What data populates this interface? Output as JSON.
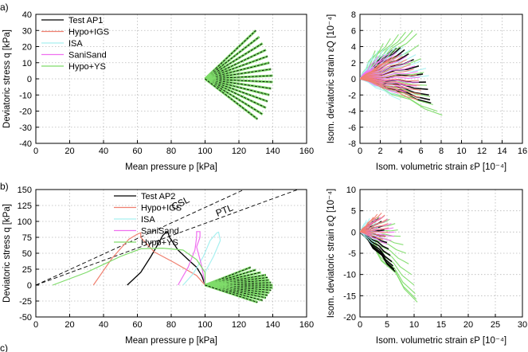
{
  "colors": {
    "test": "#000000",
    "hypo_igs": "#f08070",
    "isa": "#a8f0f0",
    "sanisand": "#f070f0",
    "hypo_ys": "#7fdc6a",
    "grid": "#b8b8b8"
  },
  "panels": [
    {
      "letter": "a)"
    },
    {
      "letter": "b)"
    },
    {
      "letter": "c)"
    }
  ],
  "chart_data": [
    {
      "id": "a-left",
      "type": "line",
      "xlabel": "Mean pressure p [kPa]",
      "ylabel": "Deviatoric stress q [kPa]",
      "xlim": [
        0,
        160
      ],
      "ylim": [
        -40,
        40
      ],
      "xticks": [
        "0",
        "20",
        "40",
        "60",
        "80",
        "100",
        "120",
        "140",
        "160"
      ],
      "yticks": [
        "-40",
        "-30",
        "-20",
        "-10",
        "0",
        "10",
        "20",
        "30",
        "40"
      ],
      "legend": [
        "Test AP1",
        "Hypo+IGS",
        "ISA",
        "SaniSand",
        "Hypo+YS"
      ],
      "legend_position": "top-left",
      "fan": {
        "origin": [
          100,
          0
        ],
        "ends": [
          [
            130,
            30
          ],
          [
            132,
            26
          ],
          [
            134,
            22
          ],
          [
            136,
            18
          ],
          [
            137,
            14
          ],
          [
            138,
            10
          ],
          [
            139,
            6
          ],
          [
            140,
            2
          ],
          [
            140,
            -2
          ],
          [
            139,
            -6
          ],
          [
            138,
            -10
          ],
          [
            137,
            -14
          ],
          [
            136,
            -18
          ],
          [
            134,
            -22
          ],
          [
            131,
            -25
          ]
        ]
      }
    },
    {
      "id": "a-right",
      "type": "line",
      "xlabel": "Isom. volumetric strain  εP [10⁻⁴]",
      "ylabel": "Isom. deviatoric strain  εQ [10⁻⁴]",
      "xlim": [
        0,
        16
      ],
      "ylim": [
        -8,
        8
      ],
      "xticks": [
        "0",
        "2",
        "4",
        "6",
        "8",
        "10",
        "12",
        "14",
        "16"
      ],
      "yticks": [
        "-8",
        "-6",
        "-4",
        "-2",
        "0",
        "2",
        "4",
        "6",
        "8"
      ],
      "series": [
        {
          "name": "Test AP1",
          "ends": [
            [
              2.3,
              3.0
            ],
            [
              2.8,
              3.2
            ],
            [
              3.2,
              3.6
            ],
            [
              3.6,
              3.8
            ],
            [
              4.0,
              3.9
            ],
            [
              4.4,
              3.6
            ],
            [
              4.8,
              3.1
            ],
            [
              5.3,
              2.4
            ],
            [
              5.8,
              1.6
            ],
            [
              6.2,
              0.6
            ],
            [
              6.5,
              -0.4
            ],
            [
              6.7,
              -1.3
            ],
            [
              6.8,
              -2.0
            ],
            [
              6.9,
              -2.6
            ],
            [
              7.0,
              -3.0
            ]
          ]
        },
        {
          "name": "Hypo+YS",
          "ends": [
            [
              1.5,
              3.5
            ],
            [
              2.3,
              4.4
            ],
            [
              3.0,
              5.0
            ],
            [
              3.8,
              5.5
            ],
            [
              4.5,
              5.8
            ],
            [
              5.2,
              6.0
            ],
            [
              5.6,
              5.6
            ],
            [
              5.8,
              4.2
            ],
            [
              6.0,
              2.5
            ],
            [
              6.3,
              0.8
            ],
            [
              6.6,
              -0.8
            ],
            [
              6.9,
              -2.2
            ],
            [
              7.2,
              -3.2
            ],
            [
              7.6,
              -4.0
            ],
            [
              8.1,
              -4.5
            ]
          ]
        },
        {
          "name": "ISA",
          "ends": [
            [
              1.3,
              3.0
            ],
            [
              1.8,
              3.5
            ],
            [
              2.4,
              3.8
            ],
            [
              3.0,
              4.0
            ],
            [
              3.6,
              4.1
            ],
            [
              4.3,
              4.0
            ],
            [
              4.9,
              3.6
            ],
            [
              5.5,
              3.0
            ],
            [
              6.0,
              2.2
            ],
            [
              6.5,
              1.3
            ],
            [
              6.8,
              0.4
            ],
            [
              3.4,
              -0.9
            ],
            [
              3.6,
              -1.6
            ],
            [
              3.8,
              -2.1
            ],
            [
              4.0,
              -2.6
            ]
          ]
        },
        {
          "name": "SaniSand",
          "ends": [
            [
              1.8,
              2.8
            ],
            [
              2.5,
              3.0
            ],
            [
              3.0,
              3.2
            ],
            [
              3.6,
              3.3
            ],
            [
              4.1,
              3.1
            ],
            [
              4.6,
              2.8
            ],
            [
              5.0,
              2.2
            ],
            [
              5.4,
              1.6
            ],
            [
              5.7,
              0.9
            ],
            [
              5.9,
              0.2
            ],
            [
              5.8,
              -0.4
            ],
            [
              5.6,
              -0.9
            ],
            [
              5.3,
              -1.3
            ],
            [
              4.6,
              -1.6
            ],
            [
              3.8,
              -1.8
            ]
          ]
        },
        {
          "name": "Hypo+IGS",
          "ends": [
            [
              2.6,
              2.2
            ],
            [
              3.0,
              2.6
            ],
            [
              3.4,
              2.8
            ],
            [
              3.8,
              2.9
            ],
            [
              4.2,
              2.8
            ],
            [
              4.6,
              2.4
            ],
            [
              5.0,
              1.8
            ],
            [
              5.3,
              1.2
            ],
            [
              5.6,
              0.5
            ],
            [
              5.8,
              -0.2
            ],
            [
              5.9,
              -0.8
            ],
            [
              6.0,
              -1.4
            ],
            [
              6.0,
              -1.9
            ],
            [
              5.9,
              -2.3
            ],
            [
              5.7,
              -2.6
            ]
          ]
        }
      ]
    },
    {
      "id": "b-left",
      "type": "line",
      "xlabel": "Mean pressure p [kPa]",
      "ylabel": "Deviatoric stress q [kPa]",
      "xlim": [
        0,
        160
      ],
      "ylim": [
        -50,
        150
      ],
      "xticks": [
        "0",
        "20",
        "40",
        "60",
        "80",
        "100",
        "120",
        "140",
        "160"
      ],
      "yticks": [
        "-50",
        "-25",
        "0",
        "25",
        "50",
        "75",
        "100",
        "125",
        "150"
      ],
      "legend": [
        "Test AP2",
        "Hypo+IGS",
        "ISA",
        "SaniSand",
        "Hypo+YS"
      ],
      "legend_position": "top-center",
      "annotations": [
        "CSL",
        "PTL"
      ],
      "reference_lines": [
        {
          "label": "CSL",
          "from": [
            0,
            0
          ],
          "to": [
            160,
            195
          ]
        },
        {
          "label": "PTL",
          "from": [
            0,
            0
          ],
          "to": [
            160,
            155
          ]
        }
      ],
      "series": [
        {
          "name": "Test AP2",
          "points": [
            [
              54,
              0
            ],
            [
              62,
              20
            ],
            [
              68,
              45
            ],
            [
              73,
              68
            ],
            [
              75,
              78
            ],
            [
              77,
              83
            ],
            [
              78,
              83
            ],
            [
              79,
              75
            ],
            [
              84,
              55
            ],
            [
              90,
              40
            ],
            [
              95,
              28
            ],
            [
              98,
              15
            ],
            [
              100,
              0
            ]
          ]
        },
        {
          "name": "Hypo+IGS",
          "points": [
            [
              34,
              0
            ],
            [
              45,
              42
            ],
            [
              55,
              72
            ],
            [
              60,
              80
            ],
            [
              62,
              82
            ],
            [
              62,
              75
            ],
            [
              70,
              52
            ],
            [
              82,
              35
            ],
            [
              95,
              15
            ],
            [
              100,
              0
            ]
          ]
        },
        {
          "name": "ISA",
          "points": [
            [
              87,
              0
            ],
            [
              93,
              18
            ],
            [
              99,
              45
            ],
            [
              103,
              70
            ],
            [
              107,
              82
            ],
            [
              108,
              83
            ],
            [
              109,
              70
            ],
            [
              105,
              45
            ],
            [
              100,
              20
            ],
            [
              100,
              0
            ]
          ]
        },
        {
          "name": "SaniSand",
          "points": [
            [
              84,
              0
            ],
            [
              90,
              28
            ],
            [
              94,
              55
            ],
            [
              95,
              75
            ],
            [
              95,
              84
            ],
            [
              97,
              84
            ],
            [
              97,
              75
            ],
            [
              95,
              60
            ],
            [
              98,
              30
            ],
            [
              100,
              0
            ]
          ]
        },
        {
          "name": "Hypo+YS",
          "points": [
            [
              10,
              0
            ],
            [
              30,
              20
            ],
            [
              50,
              45
            ],
            [
              62,
              57
            ],
            [
              75,
              58
            ],
            [
              87,
              55
            ],
            [
              95,
              40
            ],
            [
              100,
              20
            ],
            [
              100,
              0
            ]
          ]
        }
      ],
      "fan": {
        "origin": [
          100,
          0
        ],
        "ends": [
          [
            127,
            28
          ],
          [
            130,
            24
          ],
          [
            133,
            20
          ],
          [
            136,
            16
          ],
          [
            137,
            12
          ],
          [
            138,
            8
          ],
          [
            139,
            4
          ],
          [
            140,
            0
          ],
          [
            140,
            -4
          ],
          [
            139,
            -8
          ],
          [
            138,
            -12
          ],
          [
            137,
            -16
          ],
          [
            136,
            -20
          ],
          [
            134,
            -24
          ],
          [
            131,
            -27
          ]
        ]
      }
    },
    {
      "id": "b-right",
      "type": "line",
      "xlabel": "Isom. volumetric strain  εP [10⁻⁴]",
      "ylabel": "Isom. deviatoric strain  εQ [10⁻⁴]",
      "xlim": [
        0,
        30
      ],
      "ylim": [
        -20,
        10
      ],
      "xticks": [
        "0",
        "5",
        "10",
        "15",
        "20",
        "25",
        "30"
      ],
      "yticks": [
        "-20",
        "-15",
        "-10",
        "-5",
        "0",
        "5",
        "10"
      ],
      "series": [
        {
          "name": "Hypo+YS",
          "ends": [
            [
              2.5,
              3.0
            ],
            [
              3.5,
              3.5
            ],
            [
              4.5,
              3.8
            ],
            [
              5.5,
              3.0
            ],
            [
              6.5,
              2.0
            ],
            [
              7.0,
              0.5
            ],
            [
              7.5,
              -1.0
            ],
            [
              8.0,
              -3.0
            ],
            [
              8.5,
              -5.0
            ],
            [
              9.0,
              -7.5
            ],
            [
              9.5,
              -10.0
            ],
            [
              10.0,
              -12.5
            ],
            [
              10.2,
              -14.5
            ],
            [
              10.4,
              -15.8
            ],
            [
              10.6,
              -16.5
            ]
          ]
        },
        {
          "name": "Test AP2",
          "ends": [
            [
              2.0,
              2.0
            ],
            [
              2.5,
              2.5
            ],
            [
              3.0,
              3.0
            ],
            [
              3.5,
              3.2
            ],
            [
              4.0,
              2.5
            ],
            [
              4.3,
              1.5
            ],
            [
              4.5,
              0.5
            ],
            [
              4.7,
              -1.0
            ],
            [
              5.0,
              -2.5
            ],
            [
              5.3,
              -4.0
            ],
            [
              5.6,
              -5.5
            ],
            [
              5.9,
              -7.0
            ],
            [
              6.1,
              -8.0
            ],
            [
              6.3,
              -8.8
            ],
            [
              6.5,
              -9.3
            ]
          ]
        },
        {
          "name": "ISA",
          "ends": [
            [
              0.8,
              2.0
            ],
            [
              1.2,
              2.8
            ],
            [
              1.8,
              3.2
            ],
            [
              2.5,
              3.0
            ],
            [
              3.0,
              2.2
            ],
            [
              3.4,
              1.0
            ],
            [
              3.6,
              0.0
            ],
            [
              3.5,
              -1.0
            ],
            [
              3.2,
              -1.8
            ],
            [
              2.8,
              -2.4
            ],
            [
              2.4,
              -2.8
            ]
          ]
        },
        {
          "name": "SaniSand",
          "ends": [
            [
              3.0,
              3.0
            ],
            [
              3.8,
              3.5
            ],
            [
              4.5,
              3.8
            ],
            [
              5.2,
              3.0
            ],
            [
              5.8,
              2.0
            ],
            [
              6.2,
              1.0
            ],
            [
              6.4,
              0.0
            ],
            [
              6.3,
              -1.0
            ],
            [
              5.8,
              -2.0
            ],
            [
              5.0,
              -2.8
            ]
          ]
        },
        {
          "name": "Hypo+IGS",
          "ends": [
            [
              2.5,
              3.5
            ],
            [
              3.2,
              4.2
            ],
            [
              4.0,
              4.5
            ],
            [
              4.6,
              4.0
            ],
            [
              5.0,
              3.0
            ],
            [
              5.2,
              2.0
            ],
            [
              5.3,
              1.0
            ],
            [
              5.2,
              0.0
            ],
            [
              4.8,
              -1.0
            ],
            [
              4.3,
              -1.8
            ]
          ]
        }
      ]
    }
  ]
}
